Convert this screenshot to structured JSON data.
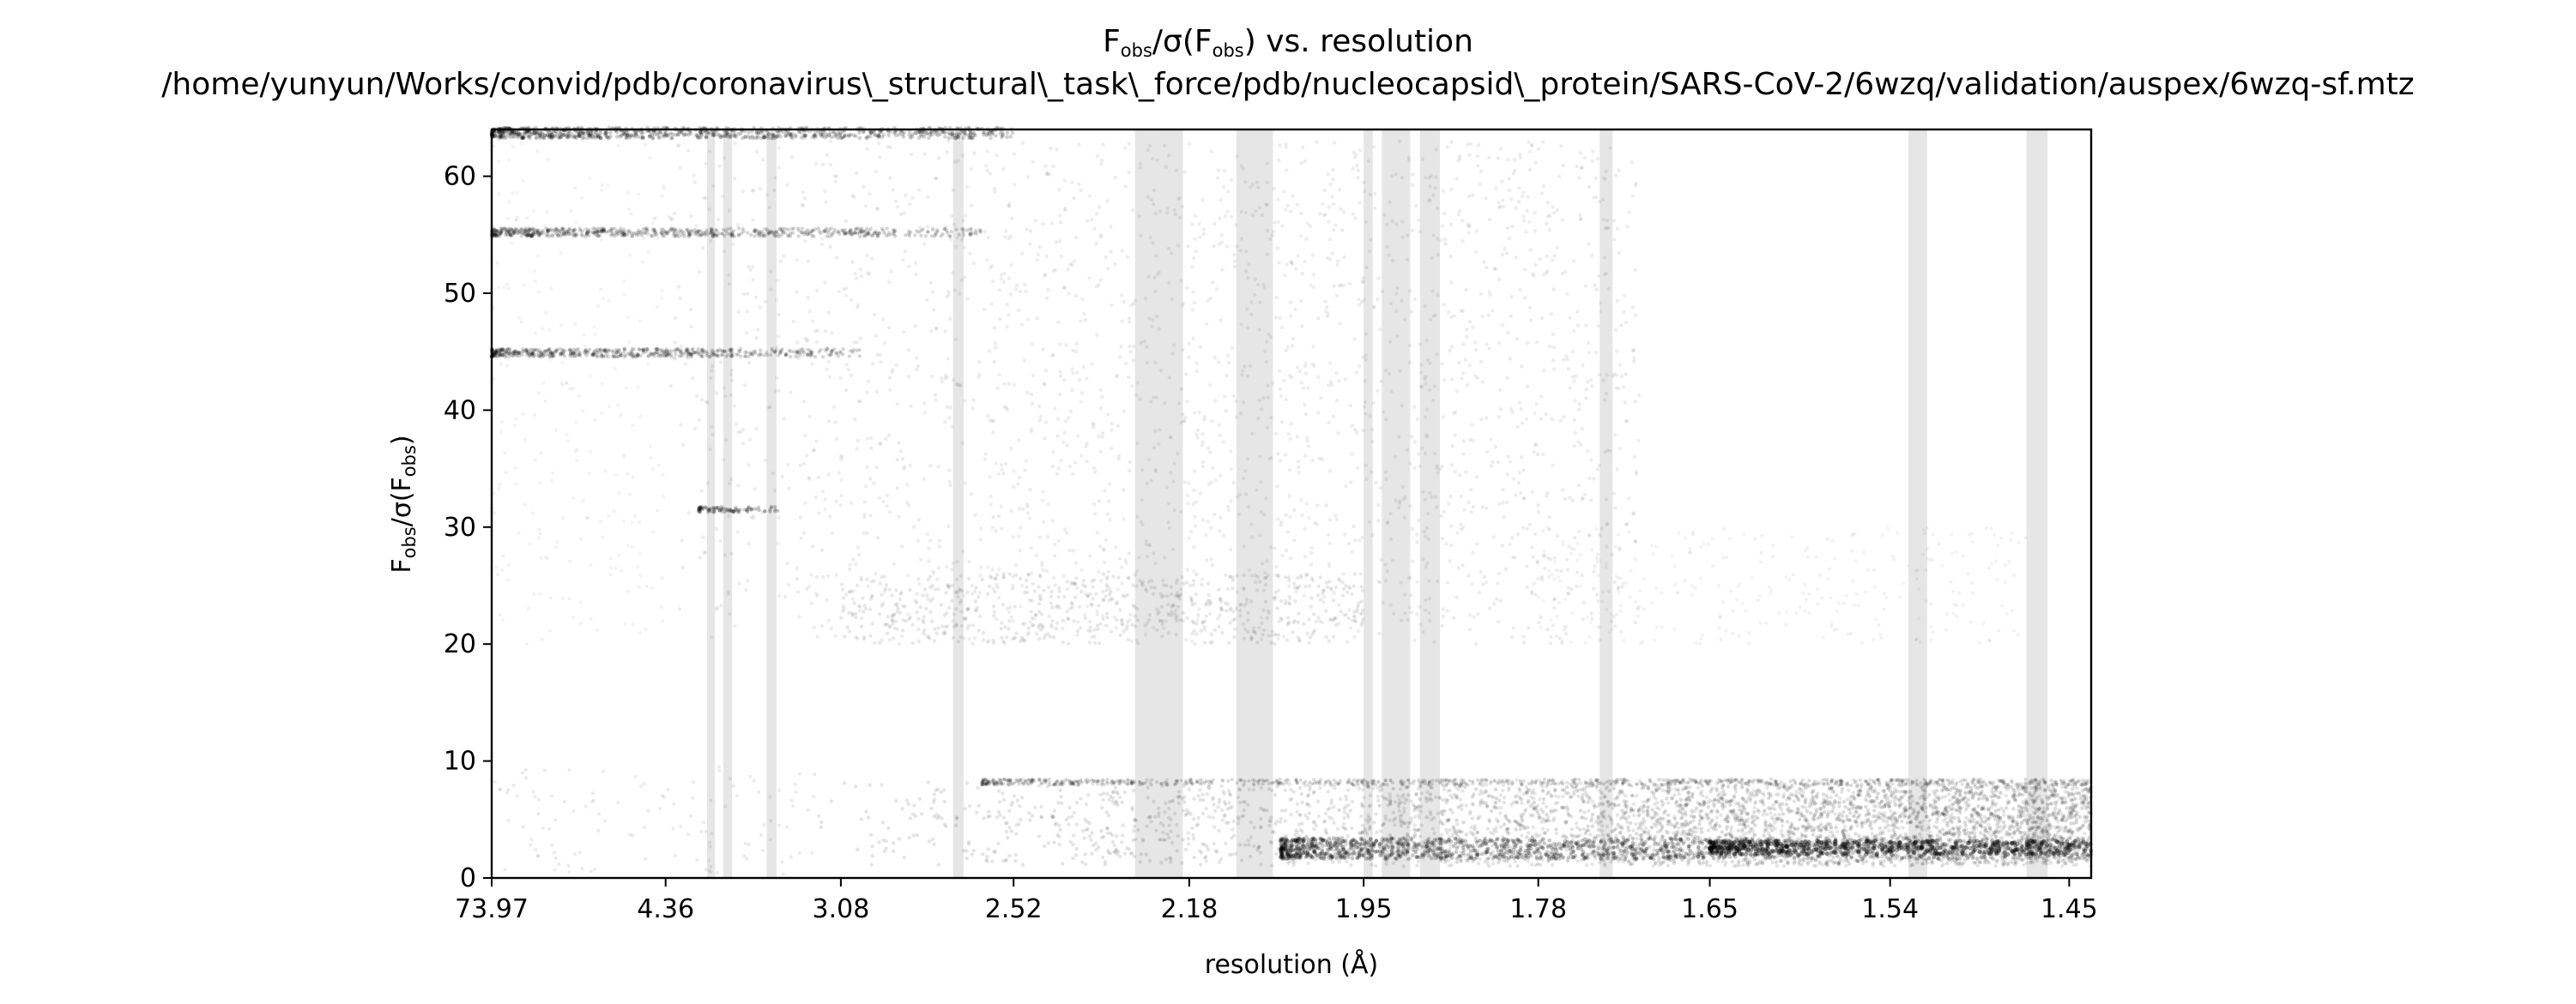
{
  "chart_data": {
    "type": "scatter",
    "title": {
      "line1": {
        "lead": "F",
        "sub1": "obs",
        "mid": "/σ(F",
        "sub2": "obs",
        "tail": ") vs. resolution"
      },
      "line2": "/home/yunyun/Works/convid/pdb/coronavirus\\_structural\\_task\\_force/pdb/nucleocapsid\\_protein/SARS-CoV-2/6wzq/validation/auspex/6wzq-sf.mtz"
    },
    "xlabel": "resolution (Å)",
    "ylabel": {
      "lead": "F",
      "sub1": "obs",
      "mid": "/σ(F",
      "sub2": "obs",
      "tail": ")"
    },
    "x_scale": "1/d^2",
    "x_ticks": [
      "73.97",
      "4.36",
      "3.08",
      "2.52",
      "2.18",
      "1.95",
      "1.78",
      "1.65",
      "1.54",
      "1.45"
    ],
    "x_range": [
      73.97,
      1.44
    ],
    "y_ticks": [
      "0",
      "10",
      "20",
      "30",
      "40",
      "50",
      "60"
    ],
    "ylim": [
      0,
      64
    ],
    "grid": false,
    "legend": "none",
    "ice_ring_bands_A": [
      [
        3.92,
        3.85
      ],
      [
        3.78,
        3.71
      ],
      [
        3.47,
        3.41
      ],
      [
        2.68,
        2.65
      ],
      [
        2.27,
        2.24
      ],
      [
        2.24,
        2.19
      ],
      [
        2.11,
        2.09
      ],
      [
        2.09,
        2.06
      ],
      [
        1.95,
        1.94
      ],
      [
        1.93,
        1.9
      ],
      [
        1.89,
        1.87
      ],
      [
        1.73,
        1.72
      ],
      [
        1.53,
        1.52
      ],
      [
        1.47,
        1.46
      ]
    ],
    "point_density_regions": [
      {
        "name": "low-snr band",
        "x_range_A": [
          3.2,
          1.44
        ],
        "y_range": [
          1,
          8.5
        ],
        "density": "high, increasing toward high resolution"
      },
      {
        "name": "dense core line",
        "x_range_A": [
          2.0,
          1.44
        ],
        "y_range": [
          1.5,
          3.5
        ],
        "density": "very high"
      },
      {
        "name": "mid-snr cloud",
        "x_range_A": [
          4.36,
          1.65
        ],
        "y_range": [
          20,
          64
        ],
        "density": "medium, fading toward high resolution"
      },
      {
        "name": "clipped line 64",
        "x_range_A": [
          73.97,
          2.52
        ],
        "y_value": 63.8,
        "density": "high"
      },
      {
        "name": "clipped line 55",
        "x_range_A": [
          73.97,
          2.6
        ],
        "y_value": 55.2,
        "density": "high"
      },
      {
        "name": "clipped line 45",
        "x_range_A": [
          73.97,
          3.0
        ],
        "y_value": 44.9,
        "density": "high"
      },
      {
        "name": "clipped line 31.5",
        "x_range_A": [
          4.0,
          3.4
        ],
        "y_value": 31.5,
        "density": "medium"
      }
    ],
    "colors": {
      "points": "#000000",
      "ice_rings": "#e6e6e6",
      "axes": "#000000"
    }
  }
}
